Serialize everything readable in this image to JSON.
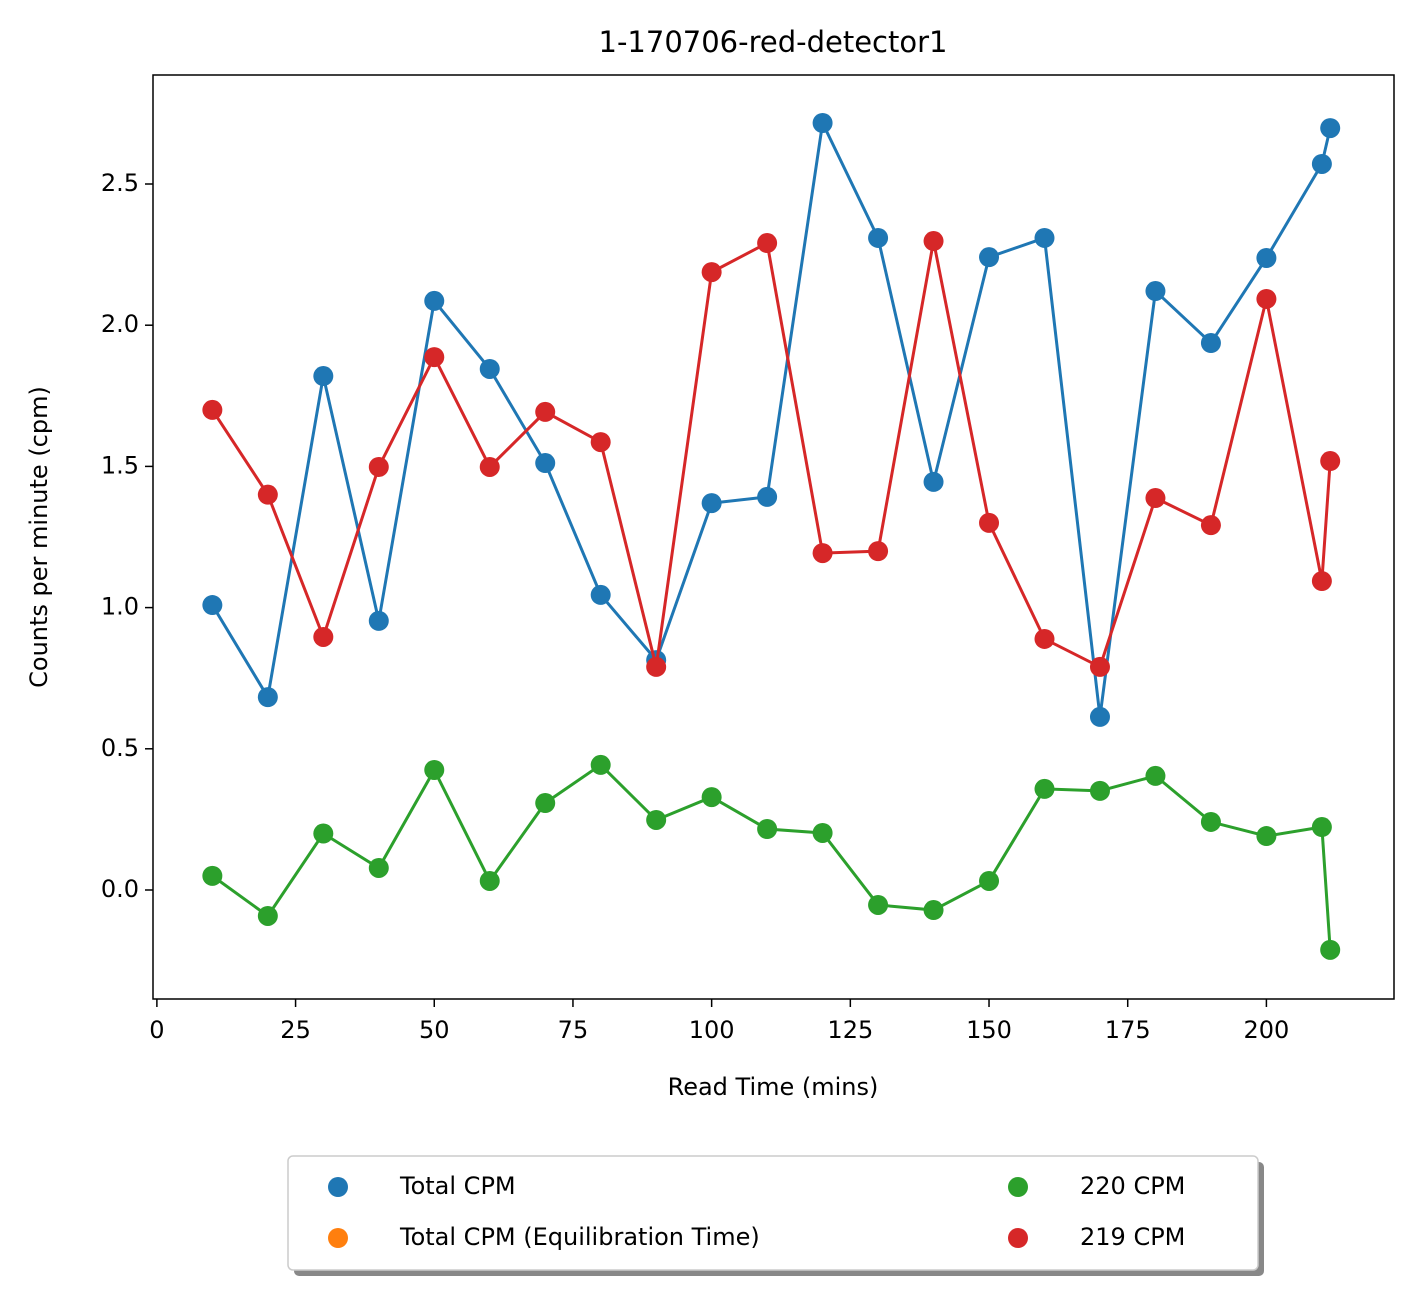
{
  "chart_data": {
    "type": "line",
    "title": "1-170706-red-detector1",
    "xlabel": "Read Time (mins)",
    "ylabel": "Counts per minute (cpm)",
    "xlim": [
      -0.7,
      223
    ],
    "ylim": [
      -0.386,
      2.886
    ],
    "xticks": [
      0,
      25,
      50,
      75,
      100,
      125,
      150,
      175,
      200
    ],
    "yticks": [
      {
        "value": 0,
        "label": "0.0"
      },
      0.5,
      {
        "value": 1,
        "label": "1.0"
      },
      1.5,
      {
        "value": 2,
        "label": "2.0"
      },
      2.5
    ],
    "legend": "lower center",
    "legend_columns": 2,
    "series": [
      {
        "name": "Total CPM",
        "color": "#1f77b4",
        "x": [
          10,
          20,
          30,
          40,
          50,
          60,
          70,
          80,
          90,
          100,
          110,
          120,
          130,
          140,
          150,
          160,
          170,
          180,
          190,
          200,
          210,
          211.5
        ],
        "values": [
          1.009,
          0.683,
          1.82,
          0.953,
          2.086,
          1.845,
          1.512,
          1.045,
          0.814,
          1.37,
          1.392,
          2.716,
          2.309,
          1.445,
          2.241,
          2.309,
          0.613,
          2.121,
          1.937,
          2.238,
          2.571,
          2.698
        ]
      },
      {
        "name": "Total CPM (Equilibration Time)",
        "color": "#ff7f0e",
        "x": [],
        "values": []
      },
      {
        "name": "220 CPM",
        "color": "#2ca02c",
        "x": [
          10,
          20,
          30,
          40,
          50,
          60,
          70,
          80,
          90,
          100,
          110,
          120,
          130,
          140,
          150,
          160,
          170,
          180,
          190,
          200,
          210,
          211.5
        ],
        "values": [
          0.05,
          -0.092,
          0.2,
          0.078,
          0.425,
          0.032,
          0.308,
          0.443,
          0.248,
          0.329,
          0.216,
          0.202,
          -0.053,
          -0.071,
          0.032,
          0.358,
          0.351,
          0.404,
          0.241,
          0.191,
          0.223,
          -0.212
        ]
      },
      {
        "name": "219 CPM",
        "color": "#d62728",
        "x": [
          10,
          20,
          30,
          40,
          50,
          60,
          70,
          80,
          90,
          100,
          110,
          120,
          130,
          140,
          150,
          160,
          170,
          180,
          190,
          200,
          210,
          211.5
        ],
        "values": [
          1.7,
          1.4,
          0.896,
          1.498,
          1.887,
          1.498,
          1.693,
          1.586,
          0.79,
          2.188,
          2.291,
          1.193,
          1.2,
          2.298,
          1.3,
          0.889,
          0.79,
          1.388,
          1.292,
          2.093,
          1.094,
          1.519
        ]
      }
    ]
  }
}
